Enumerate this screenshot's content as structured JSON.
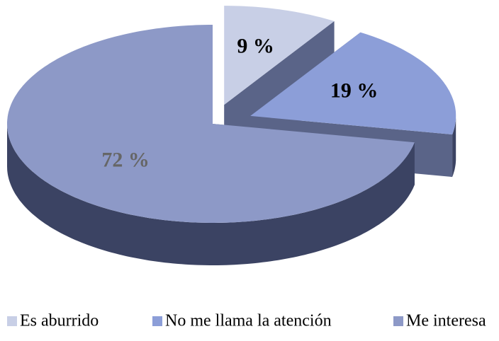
{
  "chart_data": {
    "type": "pie",
    "categories": [
      "Es aburrido",
      "No me llama la atención",
      "Me interesa"
    ],
    "values": [
      9,
      19,
      72
    ],
    "value_labels": [
      "9 %",
      "19 %",
      "72 %"
    ],
    "colors": [
      "#c8cfe6",
      "#8c9ed8",
      "#8d99c7"
    ],
    "legend": "bottom"
  }
}
